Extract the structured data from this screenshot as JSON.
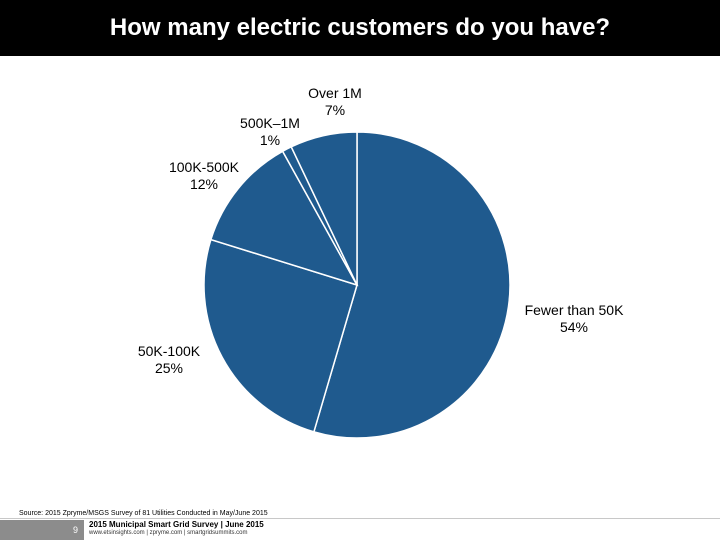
{
  "title": "How many electric customers do you have?",
  "colors": {
    "slice_fill": "#1f5a8e",
    "slice_stroke": "#ffffff",
    "title_bg": "#000000"
  },
  "chart_data": {
    "type": "pie",
    "start_angle_deg": 0,
    "direction": "clockwise",
    "slices": [
      {
        "label": "Fewer than 50K",
        "value": 54,
        "display": "54%"
      },
      {
        "label": "50K-100K",
        "value": 25,
        "display": "25%"
      },
      {
        "label": "100K-500K",
        "value": 12,
        "display": "12%"
      },
      {
        "label": "500K–1M",
        "value": 1,
        "display": "1%"
      },
      {
        "label": "Over 1M",
        "value": 7,
        "display": "7%"
      }
    ]
  },
  "source": "Source: 2015 Zpryme/MSGS Survey of 81 Utilities Conducted in May/June 2015",
  "footer": {
    "page_number": "9",
    "survey_title": "2015 Municipal Smart Grid Survey | June 2015",
    "sites": "www.etsinsights.com | zpryme.com | smartgridsummits.com"
  }
}
